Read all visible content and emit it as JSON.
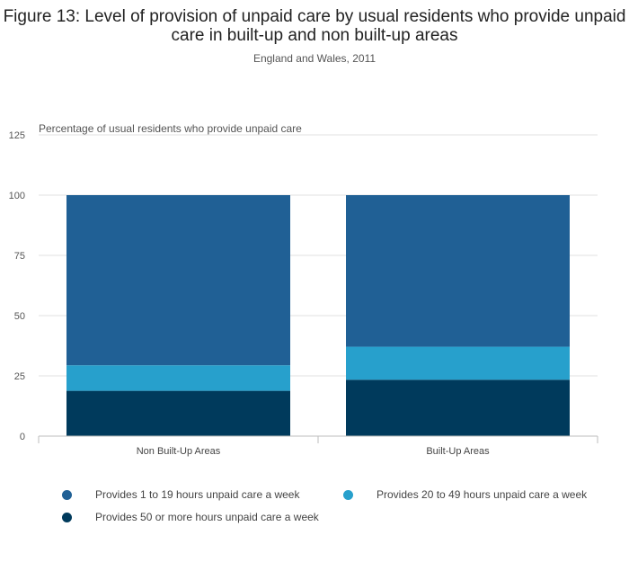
{
  "title": "Figure 13: Level of provision of unpaid care by usual residents who provide unpaid care in built-up and non built-up areas",
  "subtitle": "England and Wales, 2011",
  "chart_data": {
    "type": "bar",
    "stacked": true,
    "ylabel": "Percentage of usual residents who provide unpaid care",
    "categories": [
      "Non Built-Up Areas",
      "Built-Up Areas"
    ],
    "ylim": [
      0,
      125
    ],
    "yticks": [
      0,
      25,
      50,
      75,
      100,
      125
    ],
    "grid": true,
    "legend_position": "bottom",
    "series": [
      {
        "name": "Provides 50 or more hours unpaid care a week",
        "color": "#003a5c",
        "values": [
          18.8,
          23.4
        ]
      },
      {
        "name": "Provides 20 to 49 hours unpaid care a week",
        "color": "#27a0cc",
        "values": [
          10.6,
          13.7
        ]
      },
      {
        "name": "Provides 1 to 19 hours unpaid care a week",
        "color": "#206095",
        "values": [
          70.6,
          62.9
        ]
      }
    ]
  }
}
